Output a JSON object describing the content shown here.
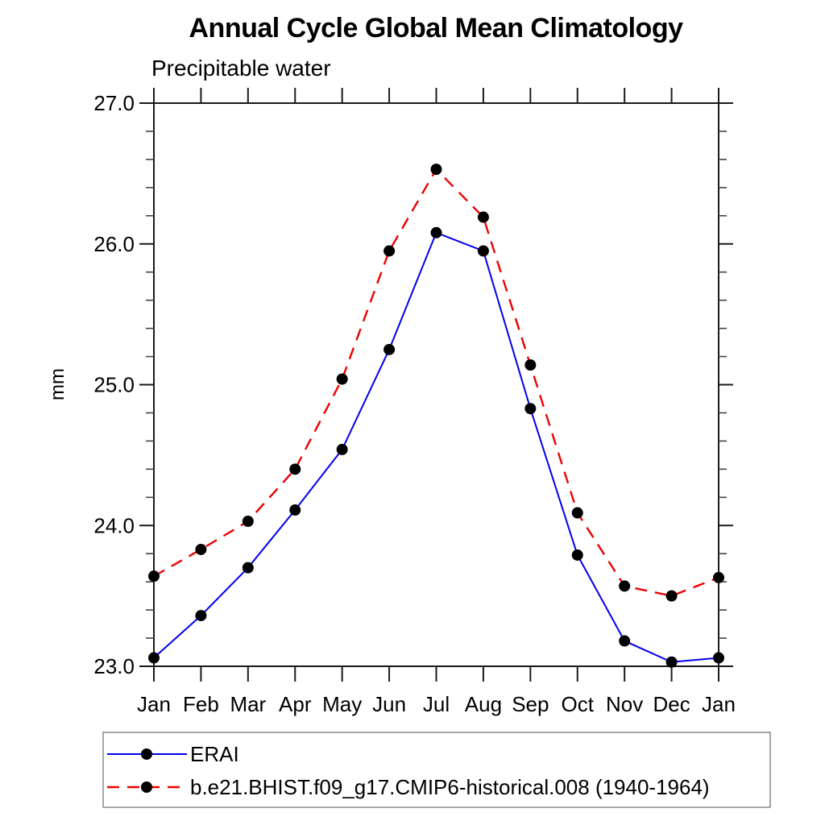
{
  "title": "Annual Cycle Global Mean Climatology",
  "subtitle": "Precipitable water",
  "y_axis_title": "mm",
  "colors": {
    "axis": "#1a1a1a",
    "minor_tick": "#444444",
    "tick_label": "#000000",
    "legend_border": "#919191",
    "marker": "#000000"
  },
  "chart_data": {
    "type": "line",
    "title": "Annual Cycle Global Mean Climatology",
    "subtitle": "Precipitable water",
    "ylabel": "mm",
    "xlabel": "",
    "grid": false,
    "legend_position": "bottom-left-box",
    "ylim": [
      23.0,
      27.0
    ],
    "y_major_step": 1.0,
    "y_minor_step": 0.2,
    "y_tick_labels": [
      "23.0",
      "24.0",
      "25.0",
      "26.0",
      "27.0"
    ],
    "categories": [
      "Jan",
      "Feb",
      "Mar",
      "Apr",
      "May",
      "Jun",
      "Jul",
      "Aug",
      "Sep",
      "Oct",
      "Nov",
      "Dec",
      "Jan"
    ],
    "series": [
      {
        "name": "ERAI",
        "color": "#0000ee",
        "line_style": "solid",
        "marker": "filled-circle",
        "values": [
          23.06,
          23.36,
          23.7,
          24.11,
          24.54,
          25.25,
          26.08,
          25.95,
          24.83,
          23.79,
          23.18,
          23.03,
          23.06
        ]
      },
      {
        "name": "b.e21.BHIST.f09_g17.CMIP6-historical.008 (1940-1964)",
        "color": "#ee0000",
        "line_style": "dashed",
        "marker": "filled-circle",
        "values": [
          23.64,
          23.83,
          24.03,
          24.4,
          25.04,
          25.95,
          26.53,
          26.19,
          25.14,
          24.09,
          23.57,
          23.5,
          23.63
        ]
      }
    ]
  }
}
